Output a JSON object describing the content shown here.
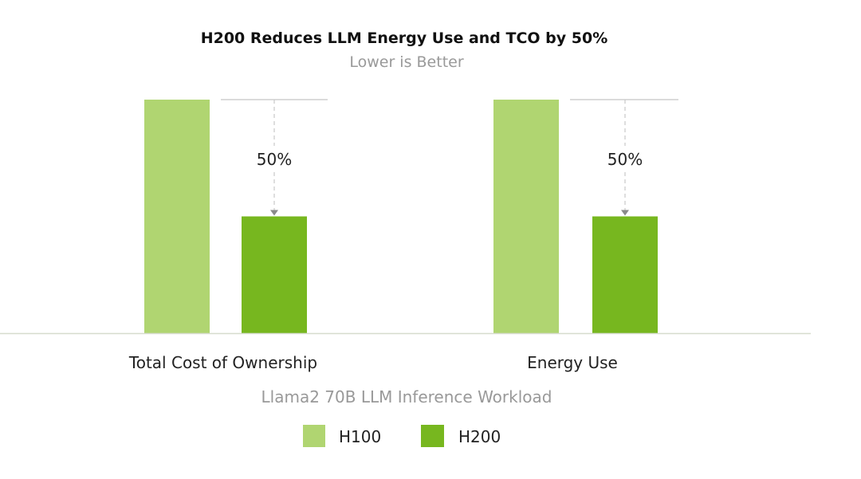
{
  "chart_data": {
    "type": "bar",
    "title": "H200 Reduces LLM Energy Use and TCO by 50%",
    "subtitle": "Lower is Better",
    "xlabel": "Llama2 70B LLM Inference Workload",
    "ylabel": "",
    "categories": [
      "Total Cost of Ownership",
      "Energy Use"
    ],
    "series": [
      {
        "name": "H100",
        "values": [
          1,
          1
        ],
        "color": "#b0d571"
      },
      {
        "name": "H200",
        "values": [
          0.5,
          0.5
        ],
        "color": "#77b71f"
      }
    ],
    "annotations": [
      "50%",
      "50%"
    ],
    "ylim": [
      0,
      1
    ],
    "grid": false,
    "y_axis_shown": false,
    "legend_placement": "bottom"
  }
}
